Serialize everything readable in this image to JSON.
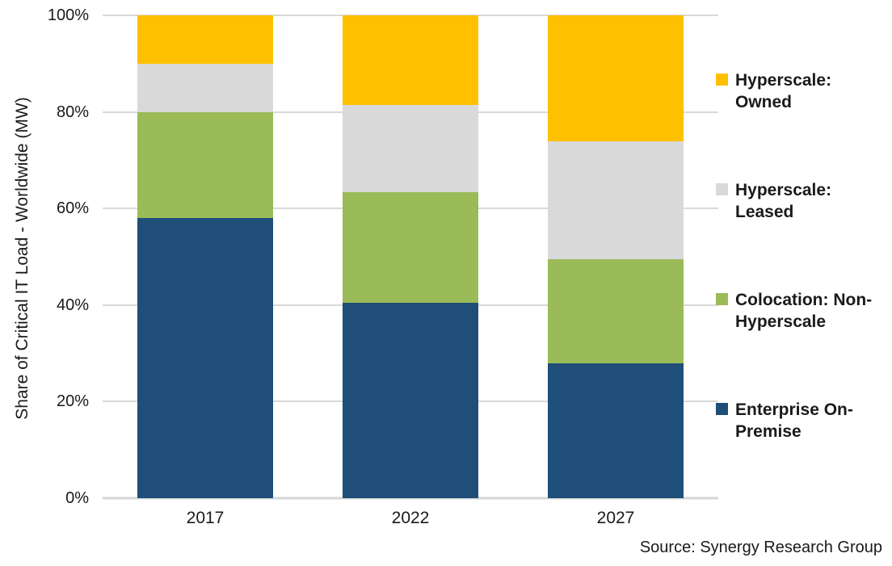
{
  "chart_data": {
    "type": "bar",
    "stacked": true,
    "percent_stacked": true,
    "categories": [
      "2017",
      "2022",
      "2027"
    ],
    "series": [
      {
        "name": "Enterprise On-Premise",
        "color": "#1F4E79",
        "values": [
          58,
          40.5,
          28
        ]
      },
      {
        "name": "Colocation: Non-Hyperscale",
        "color": "#9BBB59",
        "values": [
          22,
          22.8,
          21.5
        ]
      },
      {
        "name": "Hyperscale: Leased",
        "color": "#D9D9D9",
        "values": [
          10,
          18.1,
          24.5
        ]
      },
      {
        "name": "Hyperscale: Owned",
        "color": "#FFC000",
        "values": [
          10,
          18.6,
          26
        ]
      }
    ],
    "title": "",
    "xlabel": "",
    "ylabel": "Share of Critical IT Load - Worldwide (MW)",
    "ylim": [
      0,
      100
    ],
    "yticks": [
      "0%",
      "20%",
      "40%",
      "60%",
      "80%",
      "100%"
    ],
    "grid": true,
    "gridline_color": "#D9D9D9",
    "legend_position": "right",
    "legend_order_top_to_bottom": [
      "Hyperscale: Owned",
      "Hyperscale: Leased",
      "Colocation: Non-Hyperscale",
      "Enterprise On-Premise"
    ]
  },
  "source": {
    "text": "Source: Synergy Research Group"
  }
}
